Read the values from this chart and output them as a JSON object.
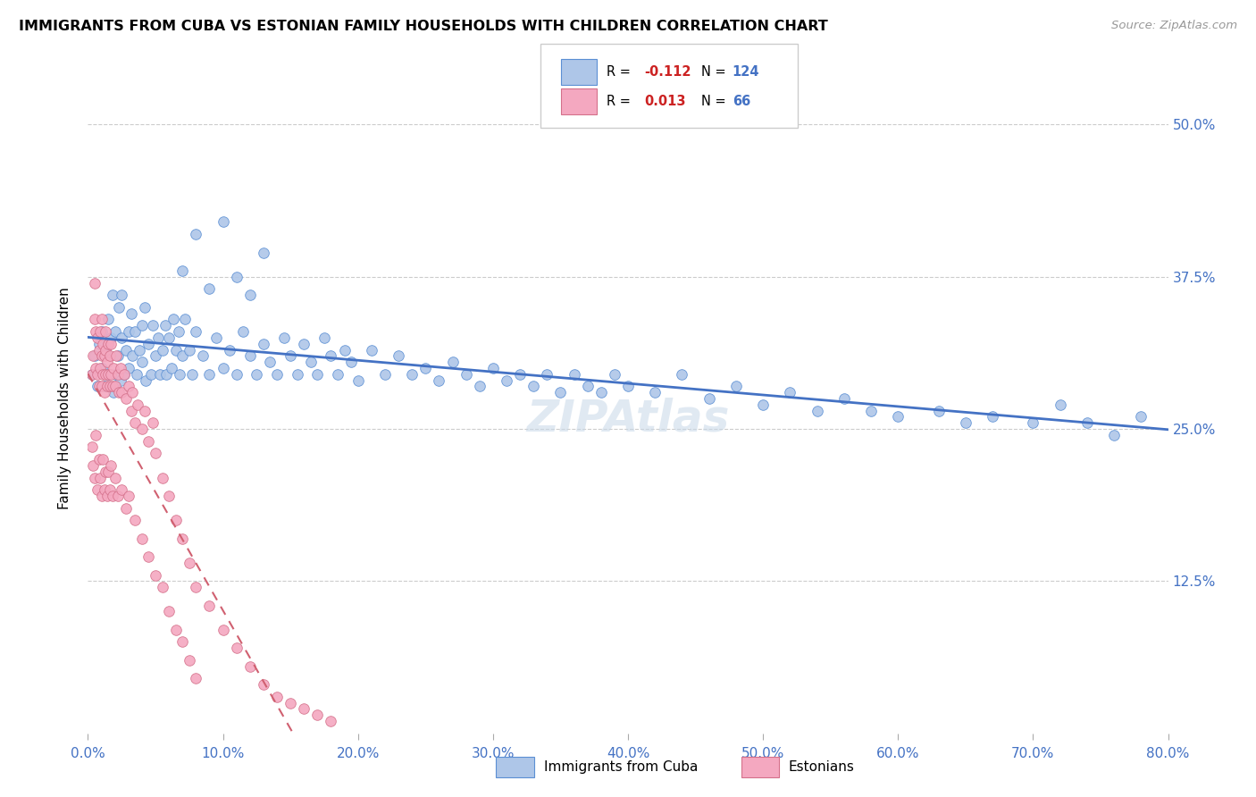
{
  "title": "IMMIGRANTS FROM CUBA VS ESTONIAN FAMILY HOUSEHOLDS WITH CHILDREN CORRELATION CHART",
  "source": "Source: ZipAtlas.com",
  "ylabel": "Family Households with Children",
  "color_cuba": "#aec6e8",
  "color_estonian": "#f4a8c0",
  "edge_cuba": "#5b8fd4",
  "edge_estonian": "#d4708a",
  "trendline_cuba": "#4472c4",
  "trendline_estonian": "#d06070",
  "xlim": [
    0.0,
    0.8
  ],
  "ylim": [
    0.0,
    0.55
  ],
  "yticks": [
    0.125,
    0.25,
    0.375,
    0.5
  ],
  "ytick_labels": [
    "12.5%",
    "25.0%",
    "37.5%",
    "50.0%"
  ],
  "xticks": [
    0.0,
    0.1,
    0.2,
    0.3,
    0.4,
    0.5,
    0.6,
    0.7,
    0.8
  ],
  "watermark": "ZIPAtlas",
  "cuba_x": [
    0.003,
    0.005,
    0.007,
    0.008,
    0.01,
    0.01,
    0.012,
    0.013,
    0.015,
    0.015,
    0.017,
    0.018,
    0.019,
    0.02,
    0.02,
    0.022,
    0.023,
    0.024,
    0.025,
    0.025,
    0.027,
    0.028,
    0.03,
    0.03,
    0.032,
    0.033,
    0.035,
    0.036,
    0.038,
    0.04,
    0.04,
    0.042,
    0.043,
    0.045,
    0.047,
    0.048,
    0.05,
    0.052,
    0.053,
    0.055,
    0.057,
    0.058,
    0.06,
    0.062,
    0.063,
    0.065,
    0.067,
    0.068,
    0.07,
    0.072,
    0.075,
    0.077,
    0.08,
    0.085,
    0.09,
    0.095,
    0.1,
    0.105,
    0.11,
    0.115,
    0.12,
    0.125,
    0.13,
    0.135,
    0.14,
    0.145,
    0.15,
    0.155,
    0.16,
    0.165,
    0.17,
    0.175,
    0.18,
    0.185,
    0.19,
    0.195,
    0.2,
    0.21,
    0.22,
    0.23,
    0.24,
    0.25,
    0.26,
    0.27,
    0.28,
    0.29,
    0.3,
    0.31,
    0.32,
    0.33,
    0.34,
    0.35,
    0.36,
    0.37,
    0.38,
    0.39,
    0.4,
    0.42,
    0.44,
    0.46,
    0.48,
    0.5,
    0.52,
    0.54,
    0.56,
    0.58,
    0.6,
    0.63,
    0.65,
    0.67,
    0.7,
    0.72,
    0.74,
    0.76,
    0.78,
    0.07,
    0.08,
    0.09,
    0.1,
    0.11,
    0.12,
    0.13
  ],
  "cuba_y": [
    0.295,
    0.31,
    0.285,
    0.32,
    0.3,
    0.33,
    0.285,
    0.315,
    0.34,
    0.295,
    0.325,
    0.36,
    0.28,
    0.33,
    0.295,
    0.31,
    0.35,
    0.29,
    0.325,
    0.36,
    0.295,
    0.315,
    0.33,
    0.3,
    0.345,
    0.31,
    0.33,
    0.295,
    0.315,
    0.335,
    0.305,
    0.35,
    0.29,
    0.32,
    0.295,
    0.335,
    0.31,
    0.325,
    0.295,
    0.315,
    0.335,
    0.295,
    0.325,
    0.3,
    0.34,
    0.315,
    0.33,
    0.295,
    0.31,
    0.34,
    0.315,
    0.295,
    0.33,
    0.31,
    0.295,
    0.325,
    0.3,
    0.315,
    0.295,
    0.33,
    0.31,
    0.295,
    0.32,
    0.305,
    0.295,
    0.325,
    0.31,
    0.295,
    0.32,
    0.305,
    0.295,
    0.325,
    0.31,
    0.295,
    0.315,
    0.305,
    0.29,
    0.315,
    0.295,
    0.31,
    0.295,
    0.3,
    0.29,
    0.305,
    0.295,
    0.285,
    0.3,
    0.29,
    0.295,
    0.285,
    0.295,
    0.28,
    0.295,
    0.285,
    0.28,
    0.295,
    0.285,
    0.28,
    0.295,
    0.275,
    0.285,
    0.27,
    0.28,
    0.265,
    0.275,
    0.265,
    0.26,
    0.265,
    0.255,
    0.26,
    0.255,
    0.27,
    0.255,
    0.245,
    0.26,
    0.38,
    0.41,
    0.365,
    0.42,
    0.375,
    0.36,
    0.395
  ],
  "estonian_x": [
    0.003,
    0.004,
    0.005,
    0.005,
    0.006,
    0.006,
    0.007,
    0.007,
    0.008,
    0.008,
    0.009,
    0.009,
    0.01,
    0.01,
    0.01,
    0.011,
    0.011,
    0.012,
    0.012,
    0.013,
    0.013,
    0.013,
    0.014,
    0.014,
    0.015,
    0.015,
    0.016,
    0.016,
    0.017,
    0.017,
    0.018,
    0.019,
    0.02,
    0.021,
    0.022,
    0.023,
    0.024,
    0.025,
    0.027,
    0.028,
    0.03,
    0.032,
    0.033,
    0.035,
    0.037,
    0.04,
    0.042,
    0.045,
    0.048,
    0.05,
    0.055,
    0.06,
    0.065,
    0.07,
    0.075,
    0.08,
    0.09,
    0.1,
    0.11,
    0.12,
    0.13,
    0.14,
    0.15,
    0.16,
    0.17,
    0.18
  ],
  "estonian_y": [
    0.295,
    0.31,
    0.34,
    0.37,
    0.3,
    0.33,
    0.295,
    0.325,
    0.285,
    0.315,
    0.3,
    0.33,
    0.285,
    0.31,
    0.34,
    0.295,
    0.32,
    0.28,
    0.31,
    0.295,
    0.315,
    0.33,
    0.285,
    0.305,
    0.295,
    0.32,
    0.285,
    0.31,
    0.295,
    0.32,
    0.285,
    0.3,
    0.285,
    0.31,
    0.295,
    0.28,
    0.3,
    0.28,
    0.295,
    0.275,
    0.285,
    0.265,
    0.28,
    0.255,
    0.27,
    0.25,
    0.265,
    0.24,
    0.255,
    0.23,
    0.21,
    0.195,
    0.175,
    0.16,
    0.14,
    0.12,
    0.105,
    0.085,
    0.07,
    0.055,
    0.04,
    0.03,
    0.025,
    0.02,
    0.015,
    0.01
  ],
  "estonian_extra_x": [
    0.003,
    0.004,
    0.005,
    0.006,
    0.007,
    0.008,
    0.009,
    0.01,
    0.011,
    0.012,
    0.013,
    0.014,
    0.015,
    0.016,
    0.017,
    0.018,
    0.02,
    0.022,
    0.025,
    0.028,
    0.03,
    0.035,
    0.04,
    0.045,
    0.05,
    0.055,
    0.06,
    0.065,
    0.07,
    0.075,
    0.08
  ],
  "estonian_extra_y": [
    0.235,
    0.22,
    0.21,
    0.245,
    0.2,
    0.225,
    0.21,
    0.195,
    0.225,
    0.2,
    0.215,
    0.195,
    0.215,
    0.2,
    0.22,
    0.195,
    0.21,
    0.195,
    0.2,
    0.185,
    0.195,
    0.175,
    0.16,
    0.145,
    0.13,
    0.12,
    0.1,
    0.085,
    0.075,
    0.06,
    0.045
  ]
}
